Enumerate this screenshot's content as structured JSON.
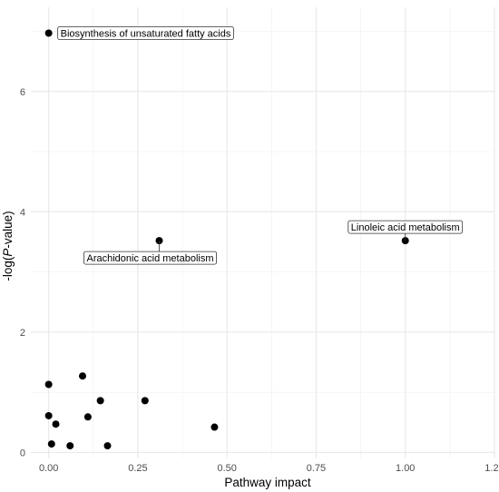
{
  "chart_data": {
    "type": "scatter",
    "xlabel": "Pathway impact",
    "ylabel_prefix": "-log(",
    "ylabel_italic": "P",
    "ylabel_suffix": "-value)",
    "xlim": [
      -0.05,
      1.25
    ],
    "ylim": [
      -0.1,
      7.4
    ],
    "x_ticks": [
      0.0,
      0.25,
      0.5,
      0.75,
      1.0,
      1.25
    ],
    "x_tick_labels": [
      "0.00",
      "0.25",
      "0.50",
      "0.75",
      "1.00",
      "1.25"
    ],
    "y_ticks": [
      0,
      2,
      4,
      6
    ],
    "y_tick_labels": [
      "0",
      "2",
      "4",
      "6"
    ],
    "grid": true,
    "point_color": "#000000",
    "points": [
      {
        "x": 0.0,
        "y": 6.97,
        "label": "Biosynthesis of unsaturated fatty acids"
      },
      {
        "x": 1.0,
        "y": 3.52,
        "label": "Linoleic acid metabolism"
      },
      {
        "x": 0.31,
        "y": 3.52,
        "label": "Arachidonic acid metabolism"
      },
      {
        "x": 0.0,
        "y": 1.13
      },
      {
        "x": 0.095,
        "y": 1.27
      },
      {
        "x": 0.145,
        "y": 0.86
      },
      {
        "x": 0.27,
        "y": 0.86
      },
      {
        "x": 0.0,
        "y": 0.61
      },
      {
        "x": 0.11,
        "y": 0.59
      },
      {
        "x": 0.02,
        "y": 0.47
      },
      {
        "x": 0.465,
        "y": 0.42
      },
      {
        "x": 0.008,
        "y": 0.14
      },
      {
        "x": 0.06,
        "y": 0.11
      },
      {
        "x": 0.165,
        "y": 0.11
      }
    ]
  }
}
